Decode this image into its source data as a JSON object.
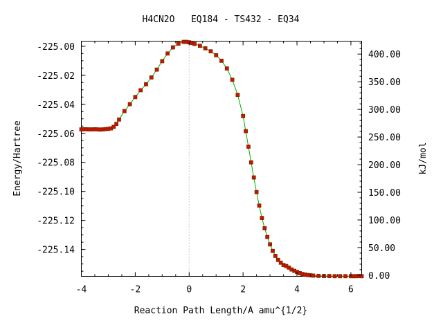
{
  "chart_data": {
    "type": "line",
    "title": "H4CN2O   EQ184 - TS432 - EQ34",
    "xlabel": "Reaction Path Length/A amu^{1/2}",
    "ylabel": "Energy/Hartree",
    "y2label": "kJ/mol",
    "xlim": [
      -4,
      6.4
    ],
    "ylim": [
      -225.1585,
      -224.9965
    ],
    "y2lim": [
      -2.0,
      423.4
    ],
    "x_ticks": [
      -4,
      -2,
      0,
      2,
      4,
      6
    ],
    "x_tick_labels": [
      "-4",
      "-2",
      "0",
      "2",
      "4",
      "6"
    ],
    "y_ticks": [
      -225.0,
      -225.02,
      -225.04,
      -225.06,
      -225.08,
      -225.1,
      -225.12,
      -225.14
    ],
    "y_tick_labels": [
      "-225.00",
      "-225.02",
      "-225.04",
      "-225.06",
      "-225.08",
      "-225.10",
      "-225.12",
      "-225.14"
    ],
    "y2_ticks": [
      0,
      50,
      100,
      150,
      200,
      250,
      300,
      350,
      400
    ],
    "y2_tick_labels": [
      "0.00",
      "50.00",
      "100.00",
      "150.00",
      "200.00",
      "250.00",
      "300.00",
      "350.00",
      "400.00"
    ],
    "ts_line_x": 0,
    "grid": false,
    "legend": "none",
    "colors": {
      "line": "#00aa00",
      "marker": "#cc1100",
      "marker_edge": "#7a2a00",
      "ts_line": "#999999"
    },
    "series": [
      {
        "x": [
          -4.0,
          -3.9,
          -3.8,
          -3.7,
          -3.6,
          -3.5,
          -3.4,
          -3.3,
          -3.2,
          -3.1,
          -3.0,
          -2.9,
          -2.8,
          -2.7,
          -2.6,
          -2.4,
          -2.2,
          -2.0,
          -1.8,
          -1.6,
          -1.4,
          -1.2,
          -1.0,
          -0.8,
          -0.6,
          -0.4,
          -0.2,
          -0.1,
          0.0,
          0.1,
          0.2,
          0.4,
          0.6,
          0.8,
          1.0,
          1.2,
          1.4,
          1.6,
          1.8,
          2.0,
          2.1,
          2.2,
          2.3,
          2.4,
          2.5,
          2.6,
          2.7,
          2.8,
          2.9,
          3.0,
          3.1,
          3.2,
          3.3,
          3.4,
          3.5,
          3.6,
          3.7,
          3.8,
          3.9,
          4.0,
          4.1,
          4.2,
          4.3,
          4.4,
          4.5,
          4.6,
          4.8,
          5.0,
          5.2,
          5.4,
          5.6,
          5.8,
          6.0,
          6.1,
          6.2,
          6.3,
          6.4
        ],
        "y": [
          -225.0573,
          -225.0572,
          -225.0572,
          -225.0573,
          -225.0573,
          -225.0572,
          -225.0573,
          -225.0574,
          -225.0573,
          -225.0571,
          -225.0569,
          -225.0566,
          -225.0555,
          -225.0535,
          -225.0505,
          -225.0447,
          -225.0399,
          -225.035,
          -225.0303,
          -225.0262,
          -225.0215,
          -225.0161,
          -225.0103,
          -225.005,
          -225.0008,
          -224.9982,
          -224.997,
          -224.997,
          -224.9973,
          -224.9978,
          -224.9984,
          -224.9997,
          -225.0014,
          -225.0035,
          -225.0062,
          -225.01,
          -225.0153,
          -225.0231,
          -225.0335,
          -225.0481,
          -225.0585,
          -225.0692,
          -225.08,
          -225.0904,
          -225.1005,
          -225.1098,
          -225.1183,
          -225.1254,
          -225.1314,
          -225.1365,
          -225.141,
          -225.1444,
          -225.1472,
          -225.1491,
          -225.1507,
          -225.1514,
          -225.1525,
          -225.1538,
          -225.1547,
          -225.1555,
          -225.1563,
          -225.1569,
          -225.1573,
          -225.1576,
          -225.1578,
          -225.158,
          -225.1582,
          -225.1583,
          -225.1583,
          -225.1584,
          -225.1584,
          -225.1584,
          -225.1584,
          -225.1584,
          -225.1584,
          -225.1583,
          -225.1584
        ]
      }
    ]
  }
}
